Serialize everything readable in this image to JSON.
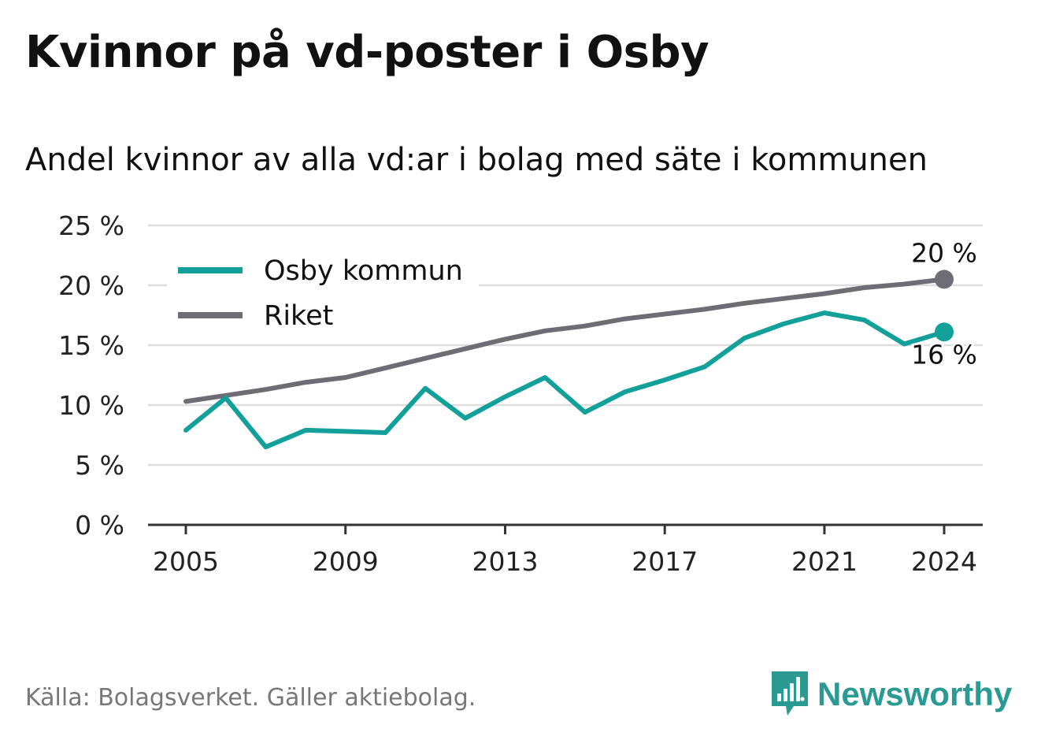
{
  "title": "Kvinnor på vd-poster i Osby",
  "subtitle": "Andel kvinnor av alla vd:ar i bolag med säte i kommunen",
  "source": "Källa: Bolagsverket. Gäller aktiebolag.",
  "brand": {
    "name": "Newsworthy",
    "icon": "newsworthy-logo-icon",
    "color": "#2a9a93"
  },
  "chart_data": {
    "type": "line",
    "x": [
      2005,
      2006,
      2007,
      2008,
      2009,
      2010,
      2011,
      2012,
      2013,
      2014,
      2015,
      2016,
      2017,
      2018,
      2019,
      2020,
      2021,
      2022,
      2023,
      2024
    ],
    "series": [
      {
        "name": "Osby kommun",
        "color": "#14a09a",
        "values": [
          7.9,
          10.6,
          6.5,
          7.9,
          7.8,
          7.7,
          11.4,
          8.9,
          10.7,
          12.3,
          9.4,
          11.1,
          12.1,
          13.2,
          15.6,
          16.8,
          17.7,
          17.1,
          15.1,
          16.1
        ],
        "end_label": "16 %"
      },
      {
        "name": "Riket",
        "color": "#6e6d75",
        "values": [
          10.3,
          10.8,
          11.3,
          11.9,
          12.3,
          13.1,
          13.9,
          14.7,
          15.5,
          16.2,
          16.6,
          17.2,
          17.6,
          18.0,
          18.5,
          18.9,
          19.3,
          19.8,
          20.1,
          20.5
        ],
        "end_label": "20 %"
      }
    ],
    "xticks": [
      2005,
      2009,
      2013,
      2017,
      2021,
      2024
    ],
    "xtick_labels": [
      "2005",
      "2009",
      "2013",
      "2017",
      "2021",
      "2024"
    ],
    "yticks": [
      0,
      5,
      10,
      15,
      20,
      25
    ],
    "ytick_labels": [
      "0 %",
      "5 %",
      "10 %",
      "15 %",
      "20 %",
      "25 %"
    ],
    "ylim": [
      0,
      25
    ],
    "xlim": [
      2005,
      2024
    ],
    "xlabel": "",
    "ylabel": "",
    "grid": true,
    "legend": "top-left",
    "grid_color": "#dedede",
    "axis_color": "#333333"
  }
}
